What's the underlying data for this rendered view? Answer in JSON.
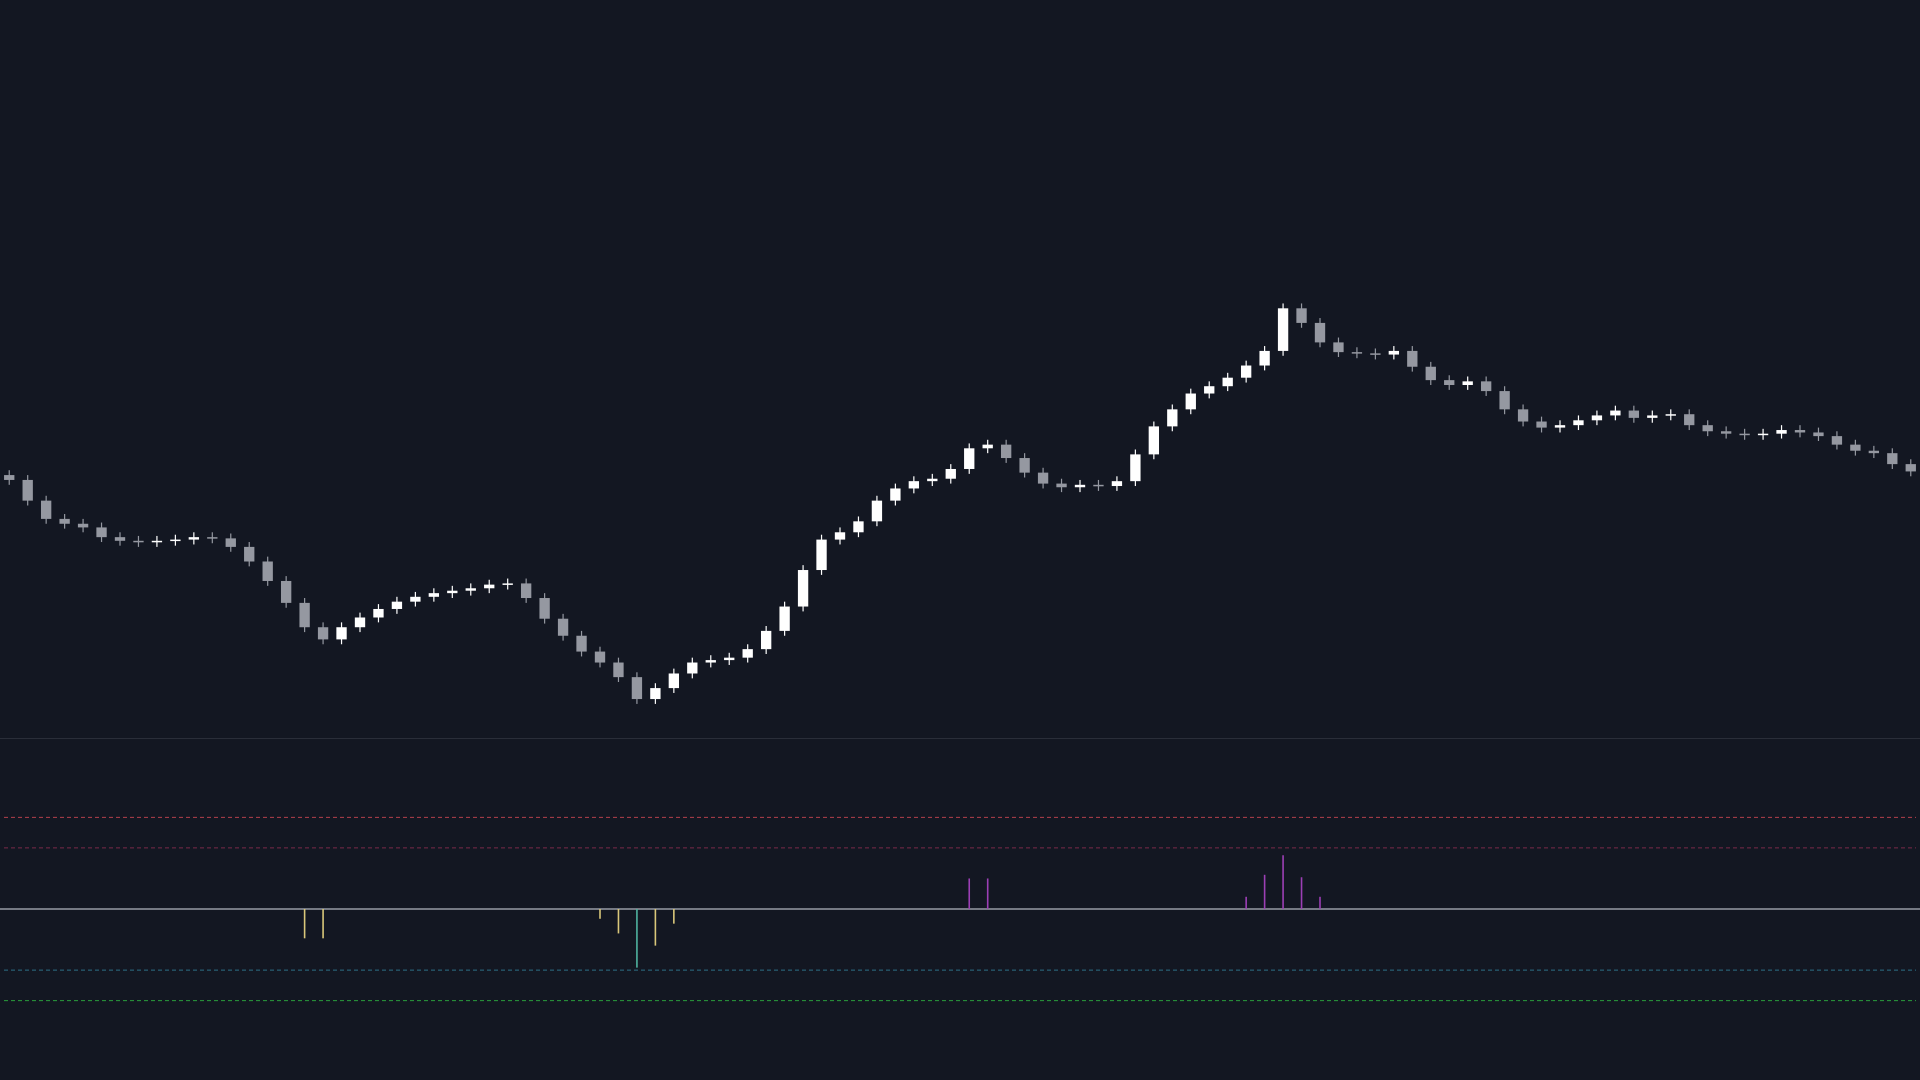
{
  "chart_data": [
    {
      "type": "candlestick",
      "open": [
        216,
        212,
        195,
        180,
        176,
        173,
        165,
        162,
        161,
        162,
        163,
        165,
        164,
        157,
        145,
        129,
        111,
        91,
        81,
        91,
        99,
        106,
        112,
        116,
        119,
        121,
        123,
        126,
        127,
        115,
        98,
        84,
        71,
        62,
        50,
        32,
        41,
        53,
        62,
        64,
        66,
        73,
        88,
        108,
        138,
        163,
        169,
        178,
        195,
        205,
        211,
        213,
        221,
        238,
        241,
        230,
        218,
        209,
        206,
        208,
        207,
        211,
        233,
        256,
        270,
        283,
        289,
        296,
        306,
        318,
        353,
        341,
        325,
        317,
        316,
        315,
        318,
        305,
        294,
        290,
        293,
        285,
        270,
        260,
        255,
        257,
        261,
        265,
        269,
        263,
        265,
        266,
        257,
        252,
        250,
        249,
        250,
        253,
        251,
        248,
        241,
        236,
        234,
        225
      ],
      "high": [
        220,
        216,
        199,
        184,
        180,
        177,
        169,
        166,
        166,
        167,
        169,
        169,
        168,
        161,
        149,
        133,
        115,
        95,
        95,
        103,
        110,
        116,
        120,
        123,
        125,
        127,
        130,
        131,
        131,
        119,
        102,
        88,
        75,
        66,
        54,
        45,
        57,
        66,
        68,
        70,
        77,
        92,
        112,
        142,
        167,
        173,
        182,
        199,
        209,
        215,
        217,
        225,
        242,
        245,
        245,
        234,
        222,
        213,
        212,
        212,
        215,
        237,
        260,
        274,
        287,
        293,
        300,
        310,
        322,
        357,
        357,
        345,
        329,
        321,
        320,
        322,
        322,
        309,
        298,
        297,
        297,
        289,
        274,
        264,
        261,
        265,
        269,
        273,
        273,
        269,
        270,
        270,
        261,
        256,
        254,
        254,
        257,
        257,
        255,
        252,
        245,
        240,
        238,
        229
      ],
      "low": [
        208,
        191,
        176,
        172,
        169,
        161,
        158,
        157,
        157,
        158,
        159,
        160,
        153,
        141,
        125,
        107,
        87,
        77,
        77,
        87,
        95,
        102,
        108,
        112,
        115,
        117,
        119,
        122,
        111,
        94,
        80,
        67,
        58,
        46,
        28,
        28,
        37,
        49,
        58,
        60,
        62,
        69,
        84,
        104,
        134,
        159,
        165,
        174,
        191,
        201,
        207,
        209,
        217,
        234,
        226,
        214,
        205,
        202,
        202,
        203,
        203,
        207,
        229,
        252,
        266,
        279,
        285,
        292,
        302,
        314,
        337,
        321,
        313,
        312,
        311,
        311,
        301,
        290,
        286,
        286,
        281,
        266,
        256,
        251,
        251,
        253,
        257,
        261,
        259,
        259,
        261,
        253,
        248,
        246,
        245,
        245,
        246,
        247,
        244,
        237,
        232,
        230,
        221,
        215
      ],
      "close": [
        212,
        195,
        180,
        176,
        173,
        165,
        162,
        161,
        162,
        163,
        165,
        164,
        157,
        145,
        129,
        111,
        91,
        81,
        91,
        99,
        106,
        112,
        116,
        119,
        121,
        123,
        126,
        127,
        115,
        98,
        84,
        71,
        62,
        50,
        32,
        41,
        53,
        62,
        64,
        66,
        73,
        88,
        108,
        138,
        163,
        169,
        178,
        195,
        205,
        211,
        213,
        221,
        238,
        241,
        230,
        218,
        209,
        206,
        208,
        207,
        211,
        233,
        256,
        270,
        283,
        289,
        296,
        306,
        318,
        353,
        341,
        325,
        317,
        316,
        315,
        318,
        305,
        294,
        290,
        293,
        285,
        270,
        260,
        255,
        257,
        261,
        265,
        269,
        263,
        265,
        266,
        257,
        252,
        250,
        249,
        250,
        253,
        251,
        248,
        241,
        236,
        234,
        225,
        219
      ],
      "ylim": [
        0,
        603
      ],
      "up_color": "#ffffff",
      "down_color": "#9598a1"
    },
    {
      "type": "histogram",
      "values": [
        null,
        null,
        null,
        null,
        null,
        null,
        null,
        null,
        null,
        null,
        null,
        null,
        null,
        null,
        null,
        null,
        -24,
        -24,
        null,
        null,
        null,
        null,
        null,
        null,
        null,
        null,
        null,
        null,
        null,
        null,
        null,
        null,
        -8,
        -20,
        -48,
        -30,
        -12,
        null,
        null,
        null,
        null,
        null,
        null,
        null,
        null,
        null,
        null,
        null,
        null,
        null,
        null,
        null,
        25,
        25,
        null,
        null,
        null,
        null,
        null,
        null,
        null,
        null,
        null,
        null,
        null,
        null,
        null,
        10,
        28,
        44,
        26,
        10,
        null,
        null,
        null,
        null,
        null,
        null,
        null,
        null,
        null,
        null,
        null,
        null,
        null,
        null,
        null,
        null,
        null,
        null,
        null,
        null,
        null,
        null,
        null,
        null,
        null,
        null,
        null,
        null,
        null,
        null,
        null,
        null
      ],
      "colors": [
        null,
        null,
        null,
        null,
        null,
        null,
        null,
        null,
        null,
        null,
        null,
        null,
        null,
        null,
        null,
        null,
        "#d9c77a",
        "#d9c77a",
        null,
        null,
        null,
        null,
        null,
        null,
        null,
        null,
        null,
        null,
        null,
        null,
        null,
        null,
        "#d9c77a",
        "#d9c77a",
        "#4fb3a0",
        "#d9c77a",
        "#d9c77a",
        null,
        null,
        null,
        null,
        null,
        null,
        null,
        null,
        null,
        null,
        null,
        null,
        null,
        null,
        null,
        "#9c3fb5",
        "#9c3fb5",
        null,
        null,
        null,
        null,
        null,
        null,
        null,
        null,
        null,
        null,
        null,
        null,
        null,
        "#9c3fb5",
        "#9c3fb5",
        "#9c3fb5",
        "#9c3fb5",
        "#9c3fb5",
        null,
        null,
        null,
        null,
        null,
        null,
        null,
        null,
        null,
        null,
        null,
        null,
        null,
        null,
        null,
        null,
        null,
        null,
        null,
        null,
        null,
        null,
        null,
        null,
        null,
        null,
        null,
        null,
        null,
        null,
        null,
        null
      ],
      "ylim": [
        -140,
        140
      ],
      "zero_line_color": "#b2b5be",
      "levels": [
        {
          "value": 75,
          "color": "#b3404c"
        },
        {
          "value": 50,
          "color": "#7a2a4a"
        },
        {
          "value": -50,
          "color": "#2d6f86"
        },
        {
          "value": -75,
          "color": "#2a9d3c"
        }
      ]
    }
  ]
}
